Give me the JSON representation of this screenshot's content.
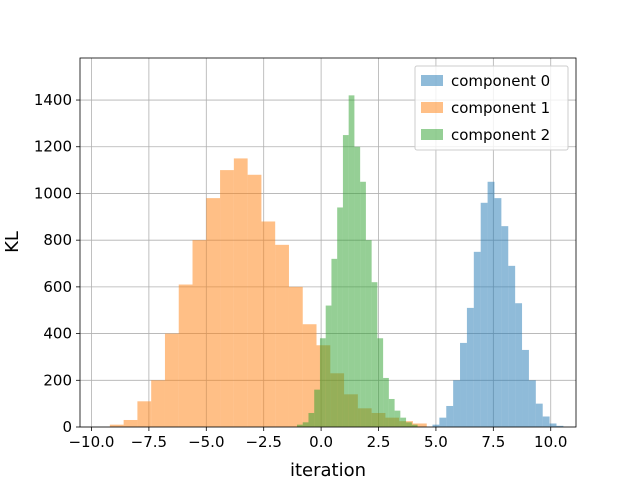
{
  "chart_data": {
    "type": "bar",
    "subtype": "histogram",
    "title": "",
    "xlabel": "iteration",
    "ylabel": "KL",
    "xlim": [
      -10.5,
      11.1
    ],
    "ylim": [
      0,
      1580
    ],
    "xticks": [
      -10.0,
      -7.5,
      -5.0,
      -2.5,
      0.0,
      2.5,
      5.0,
      7.5,
      10.0
    ],
    "xtick_labels": [
      "−10.0",
      "−7.5",
      "−5.0",
      "−2.5",
      "0.0",
      "2.5",
      "5.0",
      "7.5",
      "10.0"
    ],
    "yticks": [
      0,
      200,
      400,
      600,
      800,
      1000,
      1200,
      1400
    ],
    "ytick_labels": [
      "0",
      "200",
      "400",
      "600",
      "800",
      "1000",
      "1200",
      "1400"
    ],
    "grid": true,
    "legend": "top-right",
    "series": [
      {
        "name": "component 0",
        "color": "#1f77b4",
        "alpha": 0.5,
        "bins": [
          [
            4.85,
            5.15,
            10
          ],
          [
            5.15,
            5.45,
            40
          ],
          [
            5.45,
            5.75,
            90
          ],
          [
            5.75,
            6.05,
            200
          ],
          [
            6.05,
            6.35,
            360
          ],
          [
            6.35,
            6.65,
            510
          ],
          [
            6.65,
            6.95,
            750
          ],
          [
            6.95,
            7.25,
            960
          ],
          [
            7.25,
            7.55,
            1050
          ],
          [
            7.55,
            7.85,
            980
          ],
          [
            7.85,
            8.15,
            860
          ],
          [
            8.15,
            8.45,
            690
          ],
          [
            8.45,
            8.75,
            530
          ],
          [
            8.75,
            9.05,
            330
          ],
          [
            9.05,
            9.35,
            200
          ],
          [
            9.35,
            9.65,
            100
          ],
          [
            9.65,
            9.95,
            45
          ],
          [
            9.95,
            10.25,
            15
          ],
          [
            10.25,
            10.55,
            5
          ]
        ]
      },
      {
        "name": "component 1",
        "color": "#ff7f0e",
        "alpha": 0.5,
        "bins": [
          [
            -9.2,
            -8.6,
            10
          ],
          [
            -8.6,
            -8.0,
            30
          ],
          [
            -8.0,
            -7.4,
            110
          ],
          [
            -7.4,
            -6.8,
            200
          ],
          [
            -6.8,
            -6.2,
            400
          ],
          [
            -6.2,
            -5.6,
            610
          ],
          [
            -5.6,
            -5.0,
            800
          ],
          [
            -5.0,
            -4.4,
            980
          ],
          [
            -4.4,
            -3.8,
            1100
          ],
          [
            -3.8,
            -3.2,
            1150
          ],
          [
            -3.2,
            -2.6,
            1080
          ],
          [
            -2.6,
            -2.0,
            880
          ],
          [
            -2.0,
            -1.4,
            780
          ],
          [
            -1.4,
            -0.8,
            600
          ],
          [
            -0.8,
            -0.2,
            440
          ],
          [
            -0.2,
            0.4,
            350
          ],
          [
            0.4,
            1.0,
            230
          ],
          [
            1.0,
            1.6,
            140
          ],
          [
            1.6,
            2.2,
            80
          ],
          [
            2.2,
            2.8,
            60
          ],
          [
            2.8,
            3.4,
            40
          ],
          [
            3.4,
            4.0,
            25
          ],
          [
            4.0,
            4.6,
            15
          ]
        ]
      },
      {
        "name": "component 2",
        "color": "#2ca02c",
        "alpha": 0.5,
        "bins": [
          [
            -1.05,
            -0.8,
            10
          ],
          [
            -0.8,
            -0.55,
            20
          ],
          [
            -0.55,
            -0.3,
            60
          ],
          [
            -0.3,
            -0.05,
            160
          ],
          [
            -0.05,
            0.2,
            380
          ],
          [
            0.2,
            0.45,
            520
          ],
          [
            0.45,
            0.7,
            720
          ],
          [
            0.7,
            0.95,
            940
          ],
          [
            0.95,
            1.2,
            1250
          ],
          [
            1.2,
            1.45,
            1420
          ],
          [
            1.45,
            1.7,
            1200
          ],
          [
            1.7,
            1.95,
            1050
          ],
          [
            1.95,
            2.2,
            800
          ],
          [
            2.2,
            2.45,
            620
          ],
          [
            2.45,
            2.7,
            380
          ],
          [
            2.7,
            2.95,
            210
          ],
          [
            2.95,
            3.2,
            120
          ],
          [
            3.2,
            3.45,
            70
          ],
          [
            3.45,
            3.7,
            40
          ],
          [
            3.7,
            3.95,
            20
          ],
          [
            3.95,
            4.2,
            10
          ]
        ]
      }
    ]
  }
}
